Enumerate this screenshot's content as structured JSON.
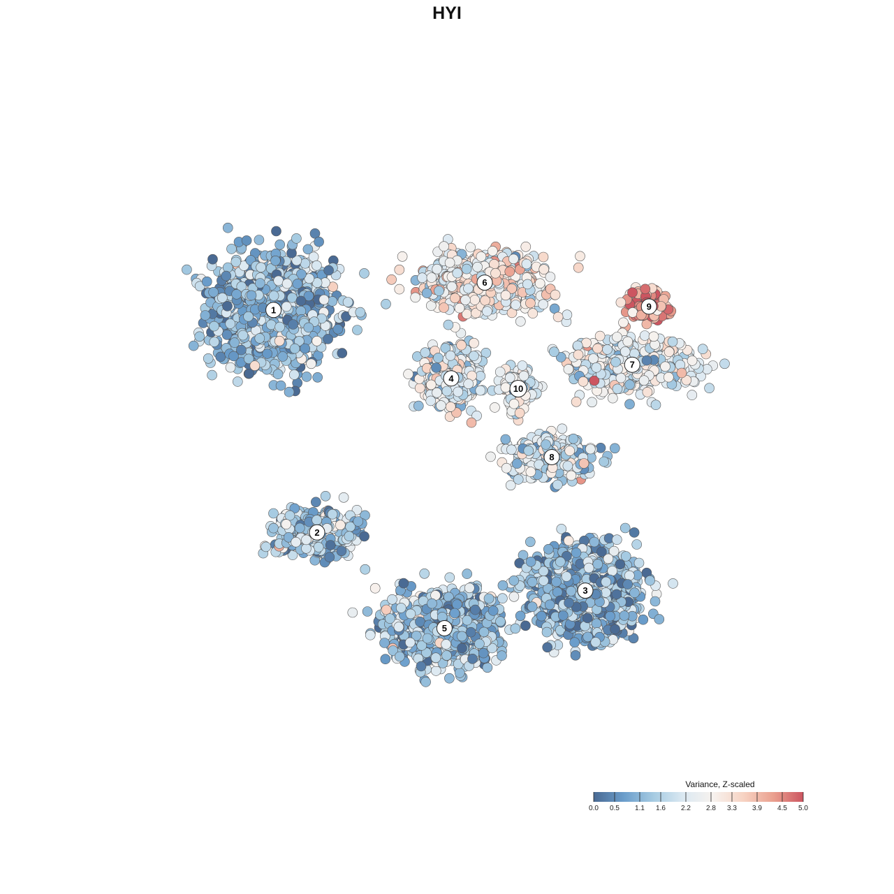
{
  "chart_data": {
    "type": "scatter",
    "title": "HYI",
    "legend": {
      "title": "Variance, Z-scaled",
      "placement": "bottom-right",
      "ticks": [
        "0.0",
        "0.5",
        "1.1",
        "1.6",
        "2.2",
        "2.8",
        "3.3",
        "3.9",
        "4.5",
        "5.0"
      ],
      "range": [
        0,
        5
      ]
    },
    "colorscale": [
      "#4a6a93",
      "#6a9dcb",
      "#a6cbe2",
      "#dce9f2",
      "#f7f2ee",
      "#f7d3c3",
      "#eaa08f",
      "#cc5560"
    ],
    "clusters": [
      {
        "label": "1",
        "center": [
          -58,
          38
        ],
        "sx": 9,
        "sy": 8,
        "n": 1300,
        "value_mean": 1.2
      },
      {
        "label": "2",
        "center": [
          -45,
          -27
        ],
        "sx": 6,
        "sy": 3.5,
        "n": 420,
        "value_mean": 1.4
      },
      {
        "label": "3",
        "center": [
          35,
          -44
        ],
        "sx": 8,
        "sy": 6,
        "n": 1100,
        "value_mean": 1.1
      },
      {
        "label": "4",
        "center": [
          -5,
          18
        ],
        "sx": 4,
        "sy": 4,
        "n": 450,
        "value_mean": 2.3
      },
      {
        "label": "5",
        "center": [
          -7,
          -55
        ],
        "sx": 8,
        "sy": 5,
        "n": 1000,
        "value_mean": 1.3
      },
      {
        "label": "6",
        "center": [
          5,
          46
        ],
        "sx": 9,
        "sy": 4,
        "n": 800,
        "value_mean": 2.8
      },
      {
        "label": "7",
        "center": [
          49,
          22
        ],
        "sx": 9,
        "sy": 4,
        "n": 450,
        "value_mean": 2.3
      },
      {
        "label": "8",
        "center": [
          25,
          -5
        ],
        "sx": 6,
        "sy": 3,
        "n": 350,
        "value_mean": 2.0
      },
      {
        "label": "9",
        "center": [
          54,
          39
        ],
        "sx": 3,
        "sy": 2.5,
        "n": 150,
        "value_mean": 4.2
      },
      {
        "label": "10",
        "center": [
          15,
          15
        ],
        "sx": 2.5,
        "sy": 3,
        "n": 120,
        "value_mean": 2.3
      }
    ],
    "xlim": [
      -100,
      100
    ],
    "ylim": [
      -100,
      100
    ]
  }
}
